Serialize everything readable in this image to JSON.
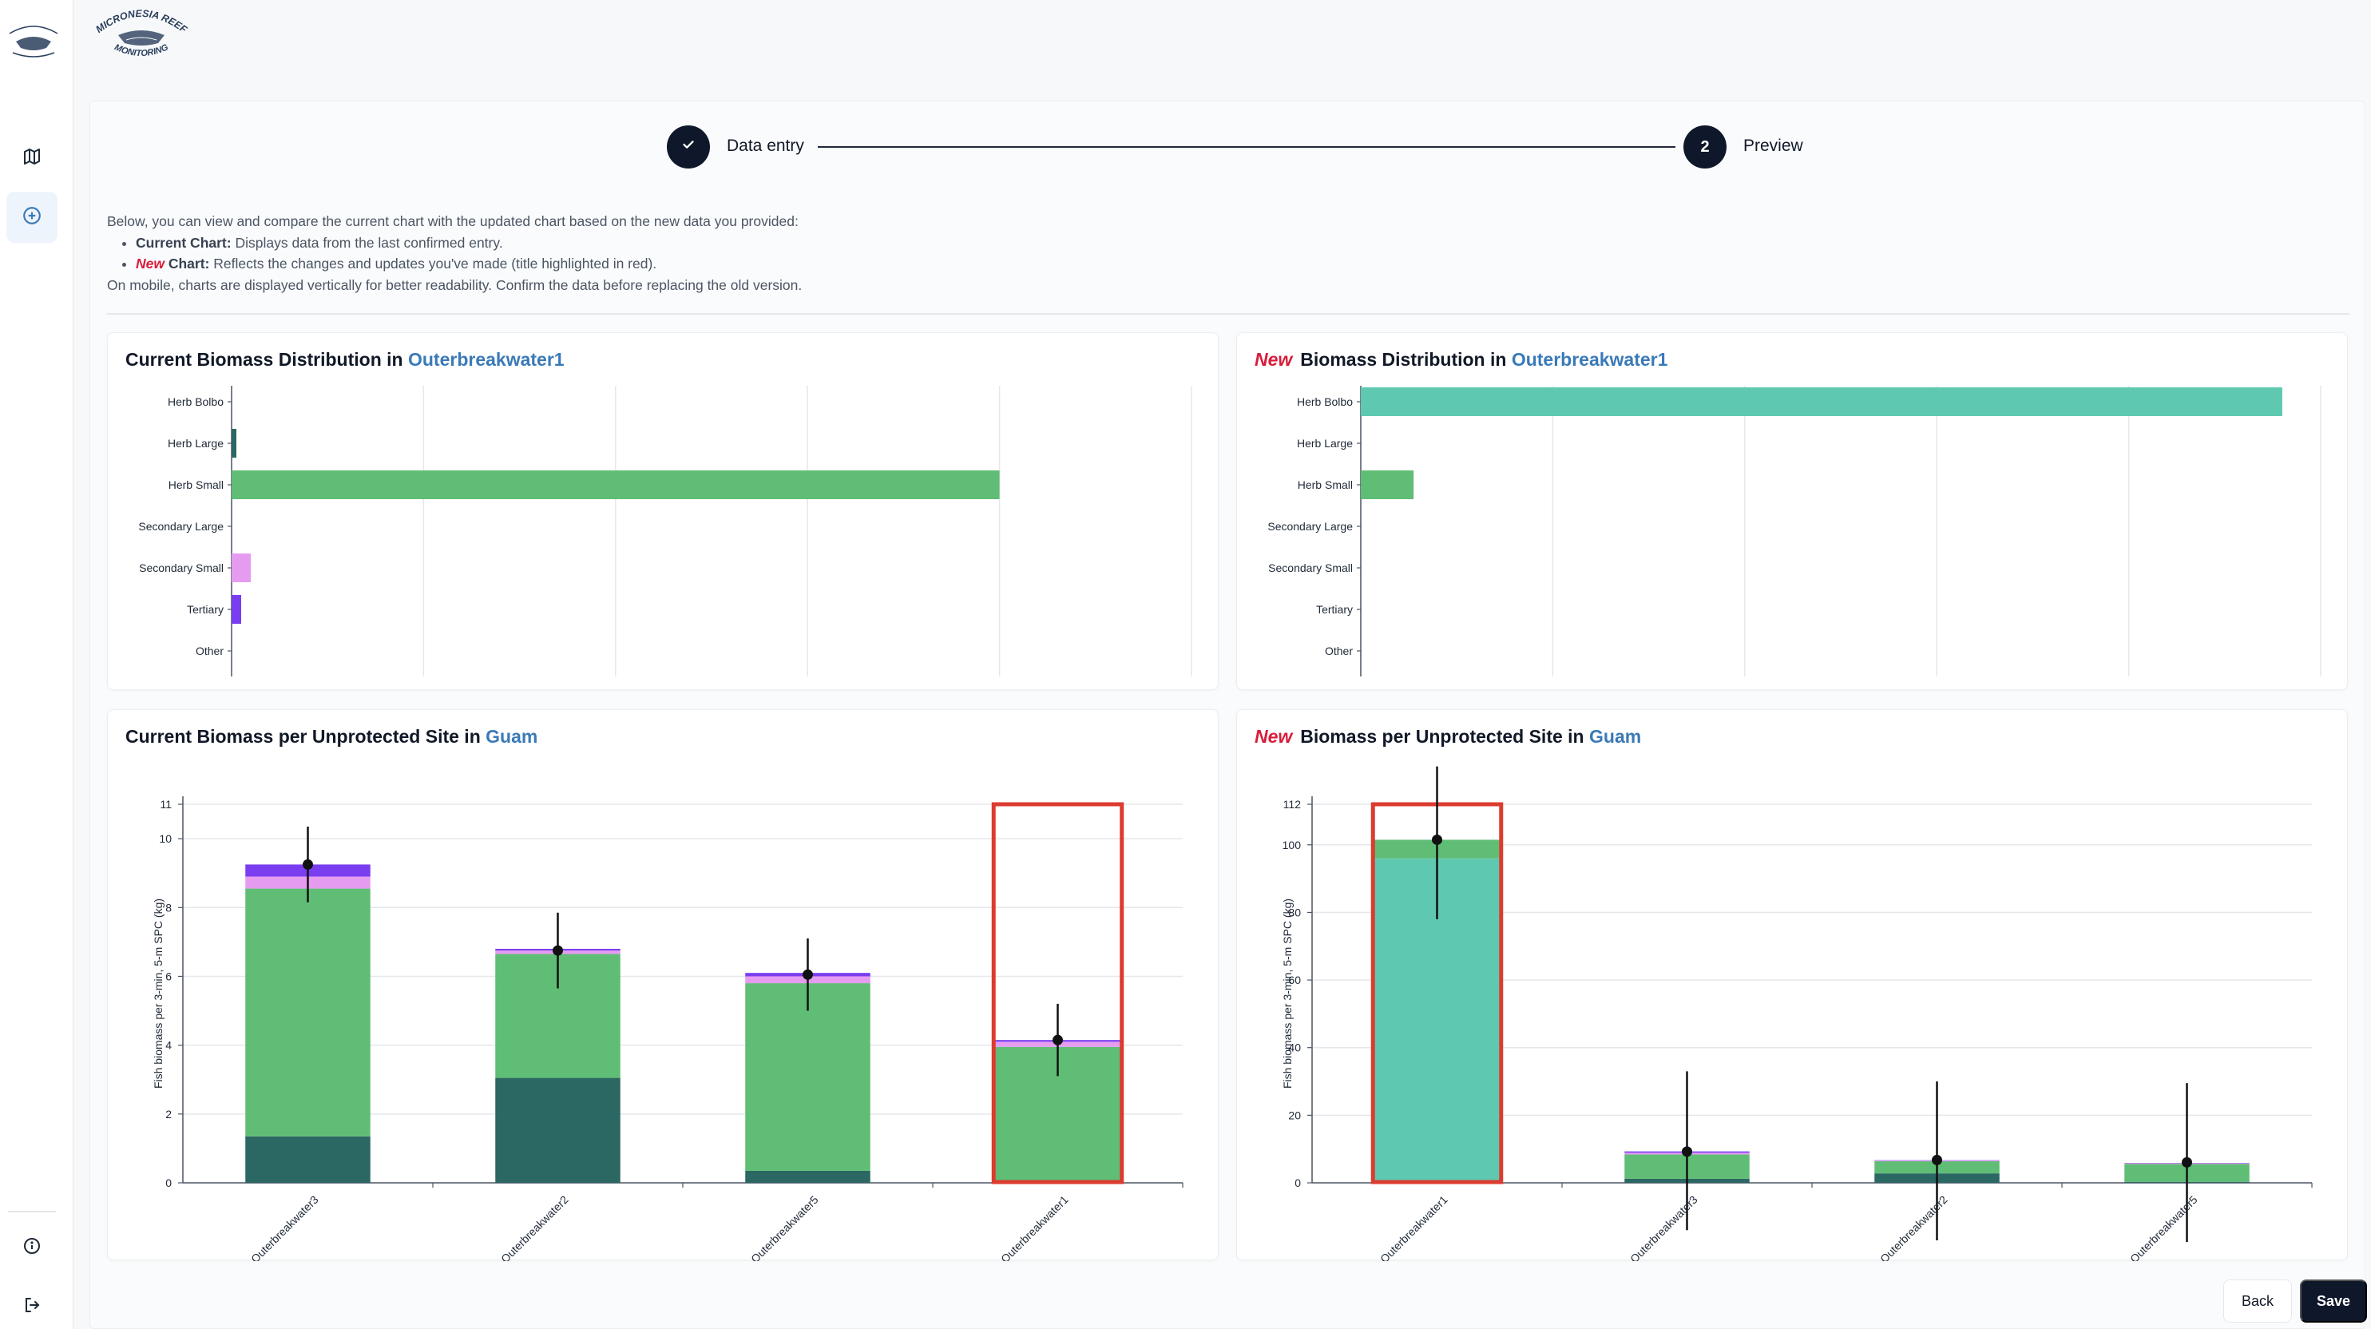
{
  "brand": {
    "logo_text_top": "MICRONESIA REEF",
    "logo_text_bottom": "MONITORING"
  },
  "sidebar": {
    "items": [
      {
        "icon": "map-icon"
      },
      {
        "icon": "add-circle-icon"
      }
    ],
    "bottom_items": [
      {
        "icon": "info-icon"
      },
      {
        "icon": "logout-icon"
      }
    ]
  },
  "stepper": {
    "step1": {
      "label": "Data entry",
      "state": "complete"
    },
    "step2": {
      "label": "Preview",
      "number": "2",
      "state": "active"
    }
  },
  "intro": {
    "line1": "Below, you can view and compare the current chart with the updated chart based on the new data you provided:",
    "bullet1_bold": "Current Chart:",
    "bullet1_text": " Displays data from the last confirmed entry.",
    "bullet2_prefix": "New",
    "bullet2_bold": " Chart:",
    "bullet2_text": " Reflects the changes and updates you've made (title highlighted in red).",
    "line4": "On mobile, charts are displayed vertically for better readability. Confirm the data before replacing the old version."
  },
  "cards": {
    "current_dist": {
      "prefix": "Current",
      "title": "Biomass Distribution in",
      "site": "Outerbreakwater1"
    },
    "new_dist": {
      "prefix": "New",
      "title": "Biomass Distribution in",
      "site": "Outerbreakwater1"
    },
    "current_site": {
      "prefix": "Current",
      "title": "Biomass per Unprotected Site in",
      "site": "Guam"
    },
    "new_site": {
      "prefix": "New",
      "title": "Biomass per Unprotected Site in",
      "site": "Guam"
    }
  },
  "colors": {
    "herb_bolbo": "#5ec9b0",
    "herb_large": "#2b6763",
    "herb_small": "#60bd75",
    "secondary_large": "#8cc6e8",
    "secondary_small": "#e59cf0",
    "tertiary": "#7a3ef0",
    "other": "#b0b7c2",
    "highlight": "#dc3b2f",
    "site_accent": "#3a7ab8",
    "new_accent": "#d81b3a"
  },
  "chart_data": [
    {
      "type": "bar",
      "orientation": "horizontal",
      "categories": [
        "Herb Bolbo",
        "Herb Large",
        "Herb Small",
        "Secondary Large",
        "Secondary Small",
        "Tertiary",
        "Other"
      ],
      "values": [
        0,
        0.05,
        8.0,
        0,
        0.2,
        0.1,
        0
      ],
      "xlim": [
        0,
        10
      ],
      "grid": true
    },
    {
      "type": "bar",
      "orientation": "horizontal",
      "categories": [
        "Herb Bolbo",
        "Herb Large",
        "Herb Small",
        "Secondary Large",
        "Secondary Small",
        "Tertiary",
        "Other"
      ],
      "values": [
        96,
        0,
        5.5,
        0,
        0,
        0,
        0
      ],
      "xlim": [
        0,
        100
      ],
      "grid": true
    },
    {
      "type": "bar",
      "stacked": true,
      "categories": [
        "Outerbreakwater3",
        "Outerbreakwater2",
        "Outerbreakwater5",
        "Outerbreakwater1"
      ],
      "ylabel": "Fish biomass per 3-min, 5-m SPC (kg)",
      "ylim": [
        0,
        11
      ],
      "yticks": [
        0,
        2,
        4,
        6,
        8,
        10,
        11
      ],
      "series": [
        {
          "key": "herb_large",
          "values": [
            1.35,
            3.05,
            0.35,
            0
          ]
        },
        {
          "key": "herb_small",
          "values": [
            7.2,
            3.6,
            5.45,
            3.95
          ]
        },
        {
          "key": "secondary_small",
          "values": [
            0.35,
            0.1,
            0.2,
            0.15
          ]
        },
        {
          "key": "tertiary",
          "values": [
            0.35,
            0.05,
            0.1,
            0.05
          ]
        }
      ],
      "means": [
        9.25,
        6.75,
        6.05,
        4.15
      ],
      "error_high": [
        10.35,
        7.85,
        7.1,
        5.2
      ],
      "error_low": [
        8.15,
        5.65,
        5.0,
        3.1
      ],
      "highlighted": "Outerbreakwater1"
    },
    {
      "type": "bar",
      "stacked": true,
      "categories": [
        "Outerbreakwater1",
        "Outerbreakwater3",
        "Outerbreakwater2",
        "Outerbreakwater5"
      ],
      "ylabel": "Fish biomass per 3-min, 5-m SPC (kg)",
      "ylim": [
        0,
        112
      ],
      "yticks": [
        0,
        20,
        40,
        60,
        80,
        100,
        112
      ],
      "series": [
        {
          "key": "herb_bolbo",
          "values": [
            96,
            0,
            0,
            0
          ]
        },
        {
          "key": "herb_large",
          "values": [
            0,
            1.2,
            2.8,
            0.3
          ]
        },
        {
          "key": "herb_small",
          "values": [
            5.5,
            7.2,
            3.6,
            5.3
          ]
        },
        {
          "key": "secondary_small",
          "values": [
            0,
            0.5,
            0.2,
            0.2
          ]
        },
        {
          "key": "tertiary",
          "values": [
            0,
            0.4,
            0.1,
            0.1
          ]
        }
      ],
      "means": [
        101.5,
        9.25,
        6.75,
        6.05
      ],
      "error_high": [
        124,
        33,
        30,
        29.5
      ],
      "error_low": [
        78,
        -14,
        -17,
        -17.5
      ],
      "highlighted": "Outerbreakwater1"
    }
  ],
  "buttons": {
    "back": "Back",
    "save": "Save"
  }
}
